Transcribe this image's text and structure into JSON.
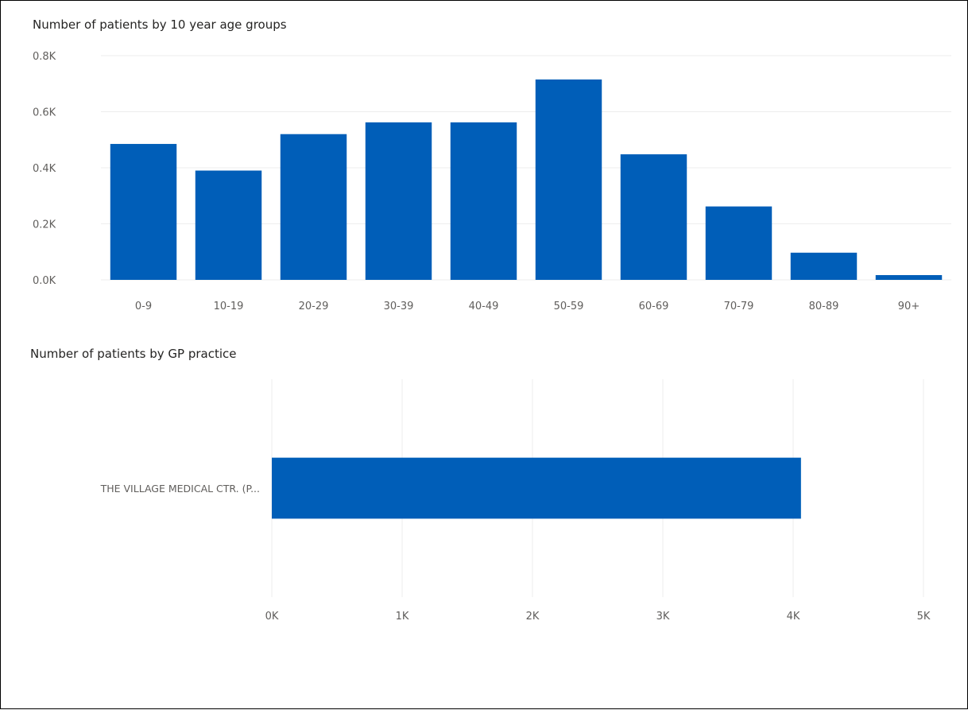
{
  "chart_data": [
    {
      "type": "bar",
      "title": "Number of patients by 10  year age groups",
      "xlabel": "",
      "ylabel": "",
      "categories": [
        "0-9",
        "10-19",
        "20-29",
        "30-39",
        "40-49",
        "50-59",
        "60-69",
        "70-79",
        "80-89",
        "90+"
      ],
      "values": [
        485,
        390,
        520,
        562,
        562,
        715,
        448,
        262,
        97,
        17
      ],
      "ylim": [
        0,
        800
      ],
      "yticks": [
        0,
        200,
        400,
        600,
        800
      ],
      "ytick_labels": [
        "0.0K",
        "0.2K",
        "0.4K",
        "0.6K",
        "0.8K"
      ],
      "grid": true,
      "bar_color": "#005EB8"
    },
    {
      "type": "bar",
      "orientation": "horizontal",
      "title": "Number of patients by GP practice",
      "xlabel": "",
      "ylabel": "",
      "categories": [
        "THE VILLAGE MEDICAL CTR. (P..."
      ],
      "values": [
        4060
      ],
      "xlim": [
        0,
        5000
      ],
      "xticks": [
        0,
        1000,
        2000,
        3000,
        4000,
        5000
      ],
      "xtick_labels": [
        "0K",
        "1K",
        "2K",
        "3K",
        "4K",
        "5K"
      ],
      "grid": true,
      "bar_color": "#005EB8"
    }
  ]
}
